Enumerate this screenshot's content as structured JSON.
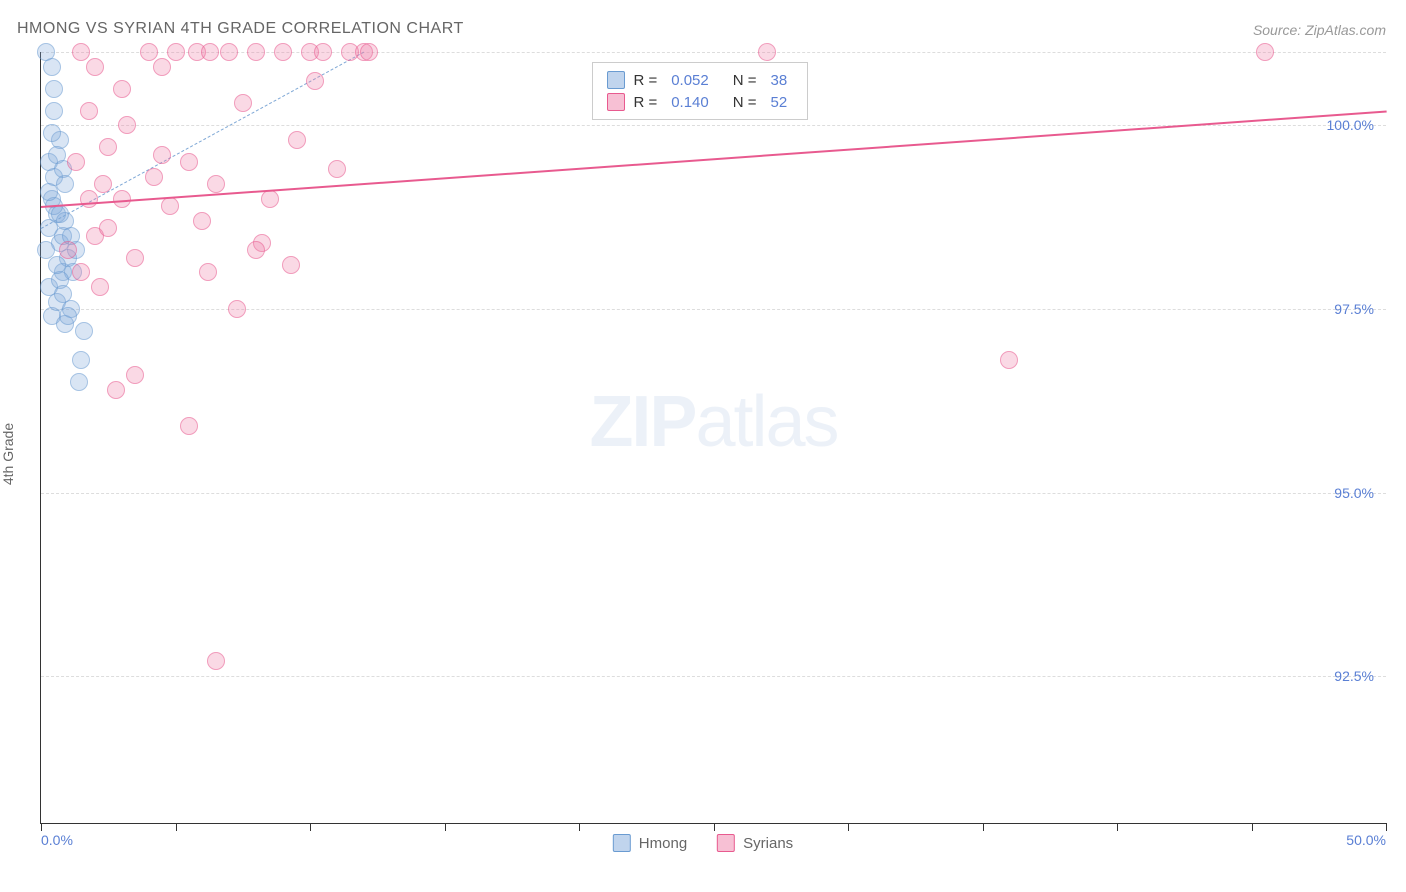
{
  "title": "HMONG VS SYRIAN 4TH GRADE CORRELATION CHART",
  "source": "Source: ZipAtlas.com",
  "y_axis_label": "4th Grade",
  "watermark_bold": "ZIP",
  "watermark_light": "atlas",
  "chart": {
    "type": "scatter",
    "x_range": [
      0,
      50
    ],
    "y_range": [
      90.5,
      101
    ],
    "y_ticks": [
      92.5,
      95.0,
      97.5,
      100.0
    ],
    "y_tick_labels": [
      "92.5%",
      "95.0%",
      "97.5%",
      "100.0%"
    ],
    "x_ticks": [
      0,
      5,
      10,
      15,
      20,
      25,
      30,
      35,
      40,
      45,
      50
    ],
    "x_tick_labels": {
      "0": "0.0%",
      "50": "50.0%"
    },
    "marker_radius": 9,
    "background_color": "#ffffff",
    "grid_color": "#dddddd",
    "gridlines_y": [
      92.5,
      95.0,
      97.5,
      100.0,
      101
    ]
  },
  "series": [
    {
      "name": "Hmong",
      "color_fill": "rgba(130, 170, 220, 0.5)",
      "color_stroke": "#6a9bd1",
      "R": "0.052",
      "N": "38",
      "trend": {
        "x1": 0,
        "y1": 98.6,
        "x2": 12,
        "y2": 101,
        "color": "#7fa8d6",
        "dashed": true
      },
      "points": [
        [
          0.2,
          101
        ],
        [
          0.3,
          99.5
        ],
        [
          0.4,
          99.0
        ],
        [
          0.5,
          100.2
        ],
        [
          0.6,
          98.8
        ],
        [
          0.7,
          98.4
        ],
        [
          0.8,
          98.0
        ],
        [
          0.3,
          98.6
        ],
        [
          0.4,
          97.4
        ],
        [
          0.6,
          97.6
        ],
        [
          0.5,
          99.3
        ],
        [
          0.7,
          99.8
        ],
        [
          0.8,
          98.5
        ],
        [
          1.0,
          98.2
        ],
        [
          1.2,
          98.0
        ],
        [
          0.4,
          100.8
        ],
        [
          0.9,
          97.3
        ],
        [
          0.3,
          97.8
        ],
        [
          1.1,
          97.5
        ],
        [
          1.3,
          98.3
        ],
        [
          0.5,
          98.9
        ],
        [
          0.6,
          99.6
        ],
        [
          1.0,
          97.4
        ],
        [
          0.8,
          99.4
        ],
        [
          1.5,
          96.8
        ],
        [
          1.4,
          96.5
        ],
        [
          0.2,
          98.3
        ],
        [
          0.9,
          98.7
        ],
        [
          0.7,
          97.9
        ],
        [
          1.6,
          97.2
        ],
        [
          0.4,
          99.9
        ],
        [
          0.5,
          100.5
        ],
        [
          0.3,
          99.1
        ],
        [
          0.6,
          98.1
        ],
        [
          0.8,
          97.7
        ],
        [
          1.1,
          98.5
        ],
        [
          0.9,
          99.2
        ],
        [
          0.7,
          98.8
        ]
      ]
    },
    {
      "name": "Syrians",
      "color_fill": "rgba(240, 130, 170, 0.5)",
      "color_stroke": "#e85a8f",
      "R": "0.140",
      "N": "52",
      "trend": {
        "x1": 0,
        "y1": 98.9,
        "x2": 50,
        "y2": 100.2,
        "color": "#e85a8f",
        "dashed": false
      },
      "points": [
        [
          1.5,
          101
        ],
        [
          2.0,
          98.5
        ],
        [
          2.5,
          99.7
        ],
        [
          3.0,
          100.5
        ],
        [
          3.5,
          98.2
        ],
        [
          4.0,
          101
        ],
        [
          4.2,
          99.3
        ],
        [
          4.5,
          100.8
        ],
        [
          5.0,
          101
        ],
        [
          5.5,
          99.5
        ],
        [
          5.8,
          101
        ],
        [
          6.0,
          98.7
        ],
        [
          6.3,
          101
        ],
        [
          6.5,
          99.2
        ],
        [
          7.0,
          101
        ],
        [
          7.5,
          100.3
        ],
        [
          8.0,
          101
        ],
        [
          8.2,
          98.4
        ],
        [
          8.5,
          99.0
        ],
        [
          9.0,
          101
        ],
        [
          9.5,
          99.8
        ],
        [
          10.0,
          101
        ],
        [
          10.2,
          100.6
        ],
        [
          10.5,
          101
        ],
        [
          11.0,
          99.4
        ],
        [
          11.5,
          101
        ],
        [
          12.0,
          101
        ],
        [
          12.2,
          101
        ],
        [
          8.0,
          98.3
        ],
        [
          9.3,
          98.1
        ],
        [
          3.0,
          99.0
        ],
        [
          4.8,
          98.9
        ],
        [
          6.2,
          98.0
        ],
        [
          7.3,
          97.5
        ],
        [
          5.5,
          95.9
        ],
        [
          2.8,
          96.4
        ],
        [
          3.5,
          96.6
        ],
        [
          1.8,
          99.0
        ],
        [
          2.2,
          97.8
        ],
        [
          1.5,
          98.0
        ],
        [
          2.5,
          98.6
        ],
        [
          1.0,
          98.3
        ],
        [
          1.3,
          99.5
        ],
        [
          1.8,
          100.2
        ],
        [
          2.0,
          100.8
        ],
        [
          6.5,
          92.7
        ],
        [
          27.0,
          101
        ],
        [
          36.0,
          96.8
        ],
        [
          45.5,
          101
        ],
        [
          2.3,
          99.2
        ],
        [
          3.2,
          100.0
        ],
        [
          4.5,
          99.6
        ]
      ]
    }
  ],
  "stats_legend": {
    "R_label": "R =",
    "N_label": "N ="
  },
  "bottom_legend": [
    {
      "label": "Hmong",
      "fill": "rgba(130, 170, 220, 0.5)",
      "stroke": "#6a9bd1"
    },
    {
      "label": "Syrians",
      "fill": "rgba(240, 130, 170, 0.5)",
      "stroke": "#e85a8f"
    }
  ]
}
